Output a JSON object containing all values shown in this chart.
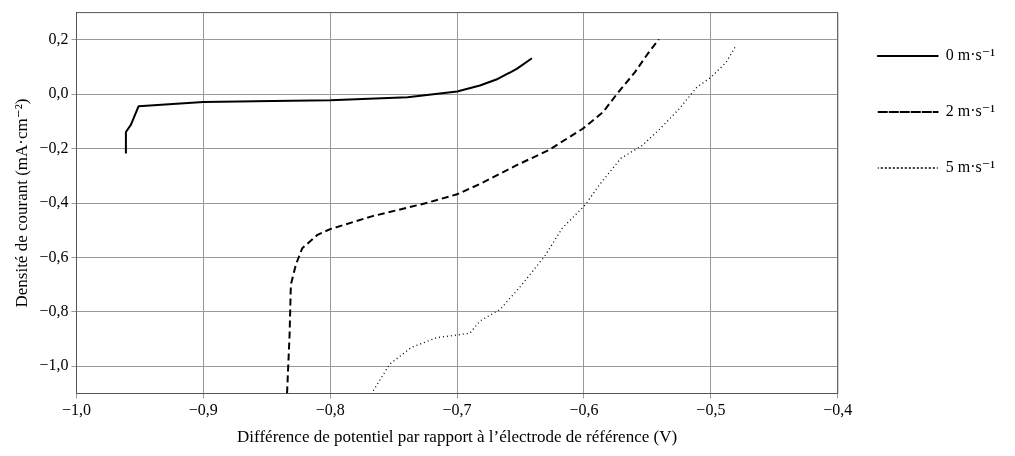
{
  "chart_data": {
    "type": "line",
    "xlabel": "Différence de potentiel par rapport à l’électrode de référence (V)",
    "ylabel": "Densité de courant (mA·cm⁻²)",
    "xlim": [
      -1.0,
      -0.4
    ],
    "xticks": [
      {
        "value": -1.0,
        "label": "−1,0"
      },
      {
        "value": -0.9,
        "label": "−0,9"
      },
      {
        "value": -0.8,
        "label": "−0,8"
      },
      {
        "value": -0.7,
        "label": "−0,7"
      },
      {
        "value": -0.6,
        "label": "−0,6"
      },
      {
        "value": -0.5,
        "label": "−0,5"
      },
      {
        "value": -0.4,
        "label": "−0,4"
      }
    ],
    "ylim": [
      -1.1,
      0.3
    ],
    "yticks": [
      {
        "value": -1.0,
        "label": "−1,0"
      },
      {
        "value": -0.8,
        "label": "−0,8"
      },
      {
        "value": -0.6,
        "label": "−0,6"
      },
      {
        "value": -0.4,
        "label": "−0,4"
      },
      {
        "value": -0.2,
        "label": "−0,2"
      },
      {
        "value": 0.0,
        "label": "0,0"
      },
      {
        "value": 0.2,
        "label": "0,2"
      }
    ],
    "grid": true,
    "legend": "right",
    "marker": "none",
    "series": [
      {
        "name": "0 m·s⁻¹",
        "color": "#000000",
        "line_style": "solid",
        "x": [
          -0.961,
          -0.961,
          -0.957,
          -0.951,
          -0.9,
          -0.8,
          -0.739,
          -0.7,
          -0.682,
          -0.668,
          -0.653,
          -0.641
        ],
        "values": [
          -0.218,
          -0.139,
          -0.112,
          -0.044,
          -0.029,
          -0.022,
          -0.011,
          0.01,
          0.032,
          0.056,
          0.093,
          0.132
        ]
      },
      {
        "name": "2 m·s⁻¹",
        "color": "#000000",
        "line_style": "dashed",
        "x": [
          -0.834,
          -0.832,
          -0.831,
          -0.827,
          -0.822,
          -0.81,
          -0.8,
          -0.768,
          -0.725,
          -0.7,
          -0.682,
          -0.653,
          -0.628,
          -0.601,
          -0.585,
          -0.574,
          -0.56,
          -0.55,
          -0.541
        ],
        "values": [
          -1.1,
          -0.882,
          -0.7,
          -0.626,
          -0.566,
          -0.517,
          -0.496,
          -0.45,
          -0.401,
          -0.368,
          -0.33,
          -0.261,
          -0.206,
          -0.127,
          -0.066,
          0.001,
          0.08,
          0.147,
          0.202
        ]
      },
      {
        "name": "5 m·s⁻¹",
        "color": "#000000",
        "line_style": "dotted",
        "x": [
          -0.766,
          -0.753,
          -0.736,
          -0.716,
          -0.69,
          -0.682,
          -0.666,
          -0.651,
          -0.631,
          -0.617,
          -0.599,
          -0.588,
          -0.571,
          -0.554,
          -0.54,
          -0.525,
          -0.511,
          -0.5,
          -0.488,
          -0.48
        ],
        "values": [
          -1.09,
          -0.992,
          -0.931,
          -0.895,
          -0.879,
          -0.834,
          -0.791,
          -0.712,
          -0.596,
          -0.492,
          -0.407,
          -0.334,
          -0.236,
          -0.188,
          -0.127,
          -0.054,
          0.026,
          0.062,
          0.117,
          0.18
        ]
      }
    ]
  }
}
